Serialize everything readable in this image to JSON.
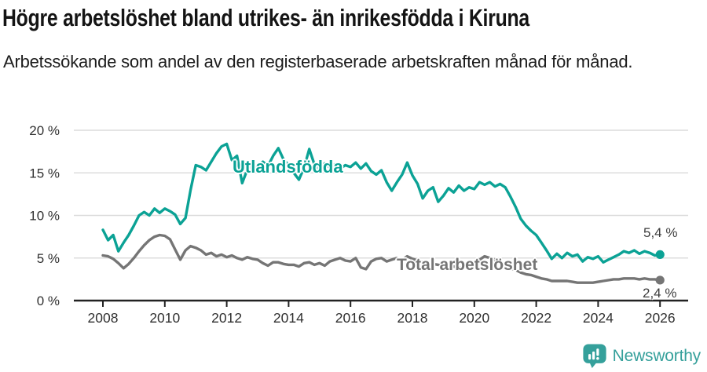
{
  "header": {
    "title": "Högre arbetslöshet bland utrikes- än inrikesfödda i Kiruna",
    "subtitle": "Arbetssökande som andel av den registerbaserade arbetskraften månad för månad."
  },
  "footer": {
    "brand": "Newsworthy",
    "icon": "bar-chart-speech-bubble-icon",
    "brand_color": "#35a09b"
  },
  "colors": {
    "accent_teal": "#0ba295",
    "series_gray": "#757575",
    "grid": "#dcdcdc",
    "axis": "#222222",
    "tick_text": "#303030",
    "title_text": "#141414",
    "value_label_text": "#3c3c3c"
  },
  "chart_data": {
    "type": "line",
    "title": "Högre arbetslöshet bland utrikes- än inrikesfödda i Kiruna",
    "subtitle": "Arbetssökande som andel av den registerbaserade arbetskraften månad för månad.",
    "legend": "inline-labels",
    "grid": "horizontal",
    "x_axis": {
      "label": "",
      "ticks": [
        2008,
        2010,
        2012,
        2014,
        2016,
        2018,
        2020,
        2022,
        2024,
        2026
      ],
      "range": [
        2008,
        2026
      ]
    },
    "y_axis": {
      "label": "",
      "ticks": [
        0,
        5,
        10,
        15,
        20
      ],
      "tick_suffix": " %",
      "range": [
        0,
        20
      ]
    },
    "series": [
      {
        "name": "Utlandsfödda",
        "color": "#0ba295",
        "end_label": "5,4 %",
        "end_value": 5.4,
        "x_start": 2008,
        "x_step": 0.16667,
        "values": [
          8.3,
          7.1,
          7.7,
          5.8,
          6.8,
          7.7,
          8.8,
          10.0,
          10.4,
          10.0,
          10.8,
          10.3,
          10.8,
          10.5,
          10.1,
          9.0,
          9.7,
          13.0,
          15.9,
          15.7,
          15.3,
          16.3,
          17.3,
          18.1,
          18.4,
          16.5,
          17.0,
          13.8,
          15.4,
          15.9,
          15.7,
          16.3,
          15.8,
          17.0,
          17.9,
          16.6,
          15.9,
          15.0,
          14.2,
          15.6,
          17.8,
          16.0,
          15.4,
          16.1,
          15.6,
          16.0,
          15.5,
          15.9,
          15.7,
          16.2,
          15.5,
          16.1,
          15.2,
          14.8,
          15.3,
          13.9,
          12.9,
          13.9,
          14.8,
          16.2,
          14.7,
          13.7,
          12.0,
          12.9,
          13.3,
          11.6,
          12.3,
          13.2,
          12.7,
          13.5,
          12.9,
          13.3,
          13.1,
          13.9,
          13.6,
          13.9,
          13.4,
          13.7,
          13.3,
          12.2,
          11.0,
          9.6,
          8.8,
          8.2,
          7.7,
          6.8,
          5.9,
          4.9,
          5.5,
          5.0,
          5.6,
          5.2,
          5.4,
          4.6,
          5.1,
          4.9,
          5.2,
          4.5,
          4.8,
          5.1,
          5.4,
          5.8,
          5.6,
          5.9,
          5.5,
          5.8,
          5.6,
          5.3,
          5.4
        ]
      },
      {
        "name": "Total arbetslöshet",
        "color": "#757575",
        "end_label": "2,4 %",
        "end_value": 2.4,
        "x_start": 2008,
        "x_step": 0.16667,
        "values": [
          5.3,
          5.2,
          4.9,
          4.4,
          3.8,
          4.3,
          5.0,
          5.8,
          6.5,
          7.1,
          7.5,
          7.7,
          7.6,
          7.2,
          6.0,
          4.8,
          5.9,
          6.4,
          6.2,
          5.9,
          5.4,
          5.6,
          5.2,
          5.4,
          5.1,
          5.3,
          5.0,
          4.8,
          5.1,
          4.9,
          4.8,
          4.4,
          4.1,
          4.5,
          4.5,
          4.3,
          4.2,
          4.2,
          4.0,
          4.4,
          4.5,
          4.2,
          4.4,
          4.1,
          4.6,
          4.8,
          5.0,
          4.7,
          4.6,
          5.0,
          3.9,
          3.7,
          4.6,
          4.9,
          5.0,
          4.6,
          4.8,
          5.0,
          4.8,
          5.2,
          4.9,
          4.7,
          4.5,
          4.4,
          4.3,
          4.2,
          4.1,
          4.0,
          4.0,
          3.9,
          3.9,
          4.0,
          4.3,
          4.8,
          5.2,
          5.0,
          4.8,
          4.5,
          4.1,
          3.8,
          3.6,
          3.3,
          3.1,
          3.0,
          2.8,
          2.6,
          2.5,
          2.3,
          2.3,
          2.3,
          2.3,
          2.2,
          2.1,
          2.1,
          2.1,
          2.1,
          2.2,
          2.3,
          2.4,
          2.5,
          2.5,
          2.6,
          2.6,
          2.6,
          2.5,
          2.6,
          2.5,
          2.5,
          2.4
        ]
      }
    ]
  }
}
